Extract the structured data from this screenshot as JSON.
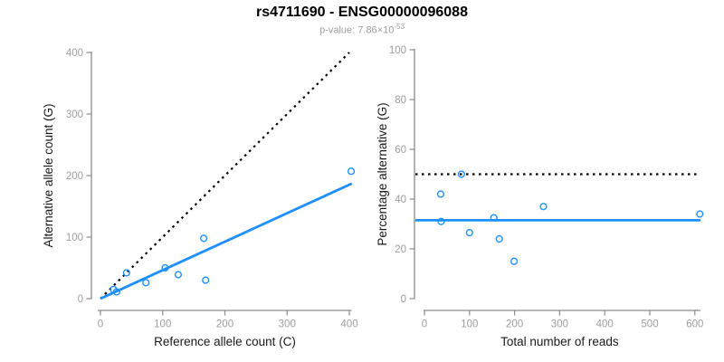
{
  "header": {
    "title": "rs4711690 - ENSG00000096088",
    "p_value_text": "p-value: 7.86×10",
    "p_value_exponent": "-53"
  },
  "colors": {
    "background": "#ffffff",
    "point_blue": "#1E90FF",
    "line_blue": "#1E90FF",
    "dotted_black": "#000000",
    "axis_line": "#8c8c8c",
    "tick_label": "#9e9e9e",
    "axis_title": "#1a1a1a",
    "subtitle_gray": "#9e9e9e"
  },
  "chart_data": [
    {
      "name": "alt-count-vs-ref-count-plot",
      "type": "scatter",
      "title": "",
      "xlabel": "Reference allele count (C)",
      "ylabel": "Alternative allele count (G)",
      "xlim": [
        0,
        400
      ],
      "ylim": [
        0,
        400
      ],
      "xticks": [
        0,
        100,
        200,
        300,
        400
      ],
      "yticks": [
        0,
        100,
        200,
        300,
        400
      ],
      "grid": false,
      "legend": "none",
      "points": [
        [
          21,
          15
        ],
        [
          26,
          11
        ],
        [
          42,
          42
        ],
        [
          73,
          26
        ],
        [
          104,
          50
        ],
        [
          125,
          39
        ],
        [
          166,
          98
        ],
        [
          169,
          30
        ],
        [
          403,
          207
        ]
      ],
      "lines": [
        {
          "name": "identity-line",
          "kind": "segment",
          "from": [
            0,
            0
          ],
          "to": [
            400,
            400
          ],
          "style": "dotted",
          "color": "#000000"
        },
        {
          "name": "regression-line",
          "kind": "segment",
          "from": [
            0,
            0
          ],
          "to": [
            404,
            187
          ],
          "style": "solid",
          "color": "#1E90FF"
        }
      ]
    },
    {
      "name": "pct-alternative-vs-total-reads-plot",
      "type": "scatter",
      "title": "",
      "xlabel": "Total number of reads",
      "ylabel": "Percentage alternative (G)",
      "xlim": [
        0,
        600
      ],
      "ylim": [
        0,
        100
      ],
      "xticks": [
        0,
        100,
        200,
        300,
        400,
        500,
        600
      ],
      "yticks": [
        0,
        20,
        40,
        60,
        80,
        100
      ],
      "grid": false,
      "legend": "none",
      "points": [
        [
          36,
          42
        ],
        [
          37,
          31
        ],
        [
          82,
          50
        ],
        [
          100,
          26.5
        ],
        [
          154,
          32.5
        ],
        [
          166,
          24
        ],
        [
          199,
          15
        ],
        [
          264,
          37
        ],
        [
          611,
          34
        ]
      ],
      "lines": [
        {
          "name": "expected-50-pct-line",
          "kind": "hline",
          "y": 50,
          "style": "dotted",
          "color": "#000000"
        },
        {
          "name": "mean-pct-line",
          "kind": "hline",
          "y": 31.5,
          "style": "solid",
          "color": "#1E90FF"
        }
      ]
    }
  ]
}
